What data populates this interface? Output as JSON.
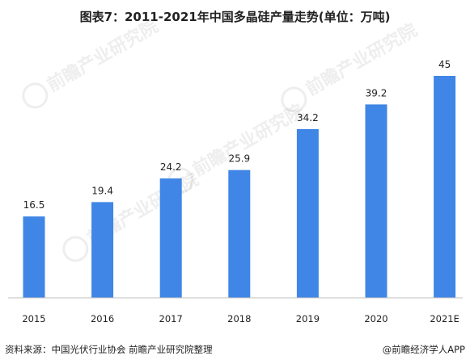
{
  "title": "图表7：2011-2021年中国多晶硅产量走势(单位：万吨)",
  "source": "资料来源：中国光伏行业协会 前瞻产业研究院整理",
  "brand": "@前瞻经济学人APP",
  "watermark_text": "前瞻产业研究院",
  "bar_color": "#3f86e6",
  "chart_data": {
    "type": "bar",
    "title": "图表7：2011-2021年中国多晶硅产量走势(单位：万吨)",
    "categories": [
      "2015",
      "2016",
      "2017",
      "2018",
      "2019",
      "2020",
      "2021E"
    ],
    "values": [
      16.5,
      19.4,
      24.2,
      25.9,
      34.2,
      39.2,
      45
    ],
    "value_labels": [
      "16.5",
      "19.4",
      "24.2",
      "25.9",
      "34.2",
      "39.2",
      "45"
    ],
    "xlabel": "",
    "ylabel": "",
    "ylim": [
      0,
      45
    ],
    "grid": false,
    "legend": "none"
  }
}
